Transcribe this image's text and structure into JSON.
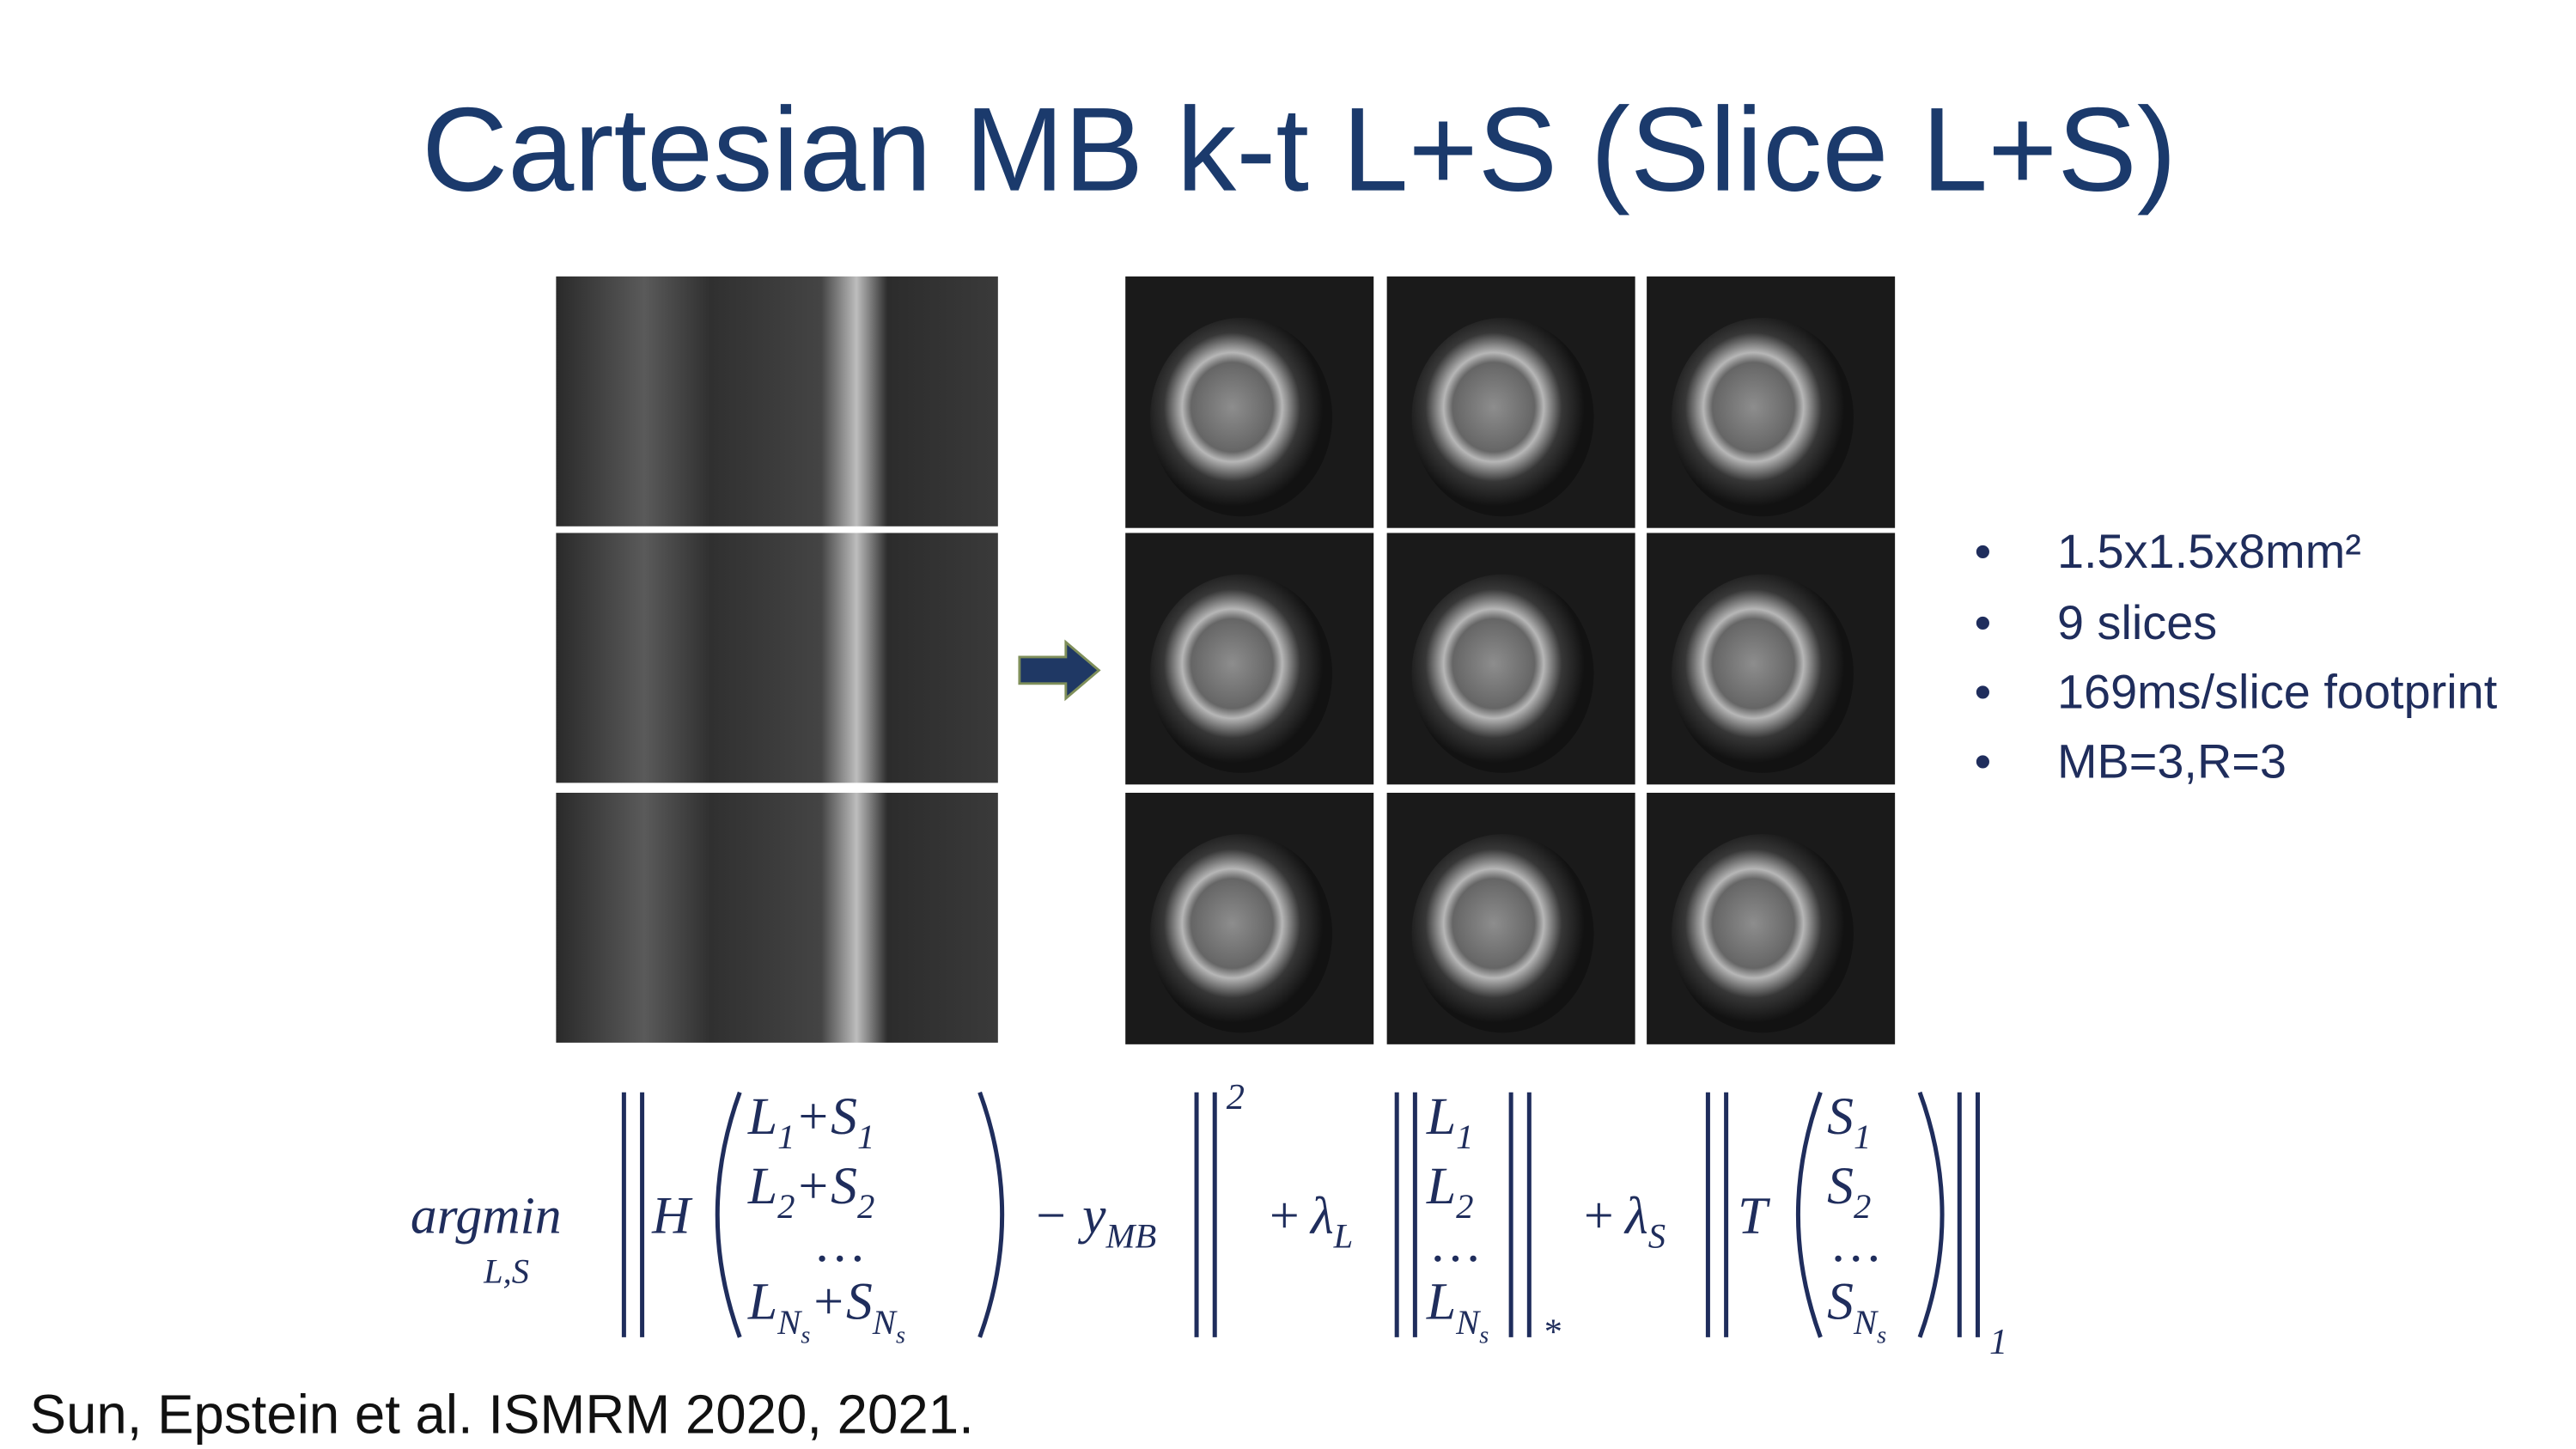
{
  "title": "Cartesian MB k-t L+S (Slice L+S)",
  "bullets": [
    "1.5x1.5x8mm²",
    "9 slices",
    "169ms/slice footprint",
    "MB=3,R=3"
  ],
  "citation": "Sun, Epstein et al. ISMRM 2020, 2021.",
  "equation": {
    "operator": "argmin",
    "operator_sub": "L,S",
    "H": "H",
    "vector1": [
      [
        {
          "base": "L",
          "sub": "1"
        },
        {
          "base": "+"
        },
        {
          "base": "S",
          "sub": "1"
        }
      ],
      [
        {
          "base": "L",
          "sub": "2"
        },
        {
          "base": "+"
        },
        {
          "base": "S",
          "sub": "2"
        }
      ],
      [
        {
          "base": "…"
        }
      ],
      [
        {
          "base": "L",
          "sub": "N",
          "subsub": "s"
        },
        {
          "base": "+"
        },
        {
          "base": "S",
          "sub": "N",
          "subsub": "s"
        }
      ]
    ],
    "minus": "−",
    "y": {
      "base": "y",
      "sub": "MB"
    },
    "exponent": "2",
    "plus1": "+",
    "lambda_L": {
      "base": "λ",
      "sub": "L"
    },
    "vector2": [
      [
        {
          "base": "L",
          "sub": "1"
        }
      ],
      [
        {
          "base": "L",
          "sub": "2"
        }
      ],
      [
        {
          "base": "…"
        }
      ],
      [
        {
          "base": "L",
          "sub": "N",
          "subsub": "s"
        }
      ]
    ],
    "norm_star": "*",
    "plus2": "+",
    "lambda_S": {
      "base": "λ",
      "sub": "S"
    },
    "T": "T",
    "vector3": [
      [
        {
          "base": "S",
          "sub": "1"
        }
      ],
      [
        {
          "base": "S",
          "sub": "2"
        }
      ],
      [
        {
          "base": "…"
        }
      ],
      [
        {
          "base": "S",
          "sub": "N",
          "subsub": "s"
        }
      ]
    ],
    "norm_1": "1"
  }
}
